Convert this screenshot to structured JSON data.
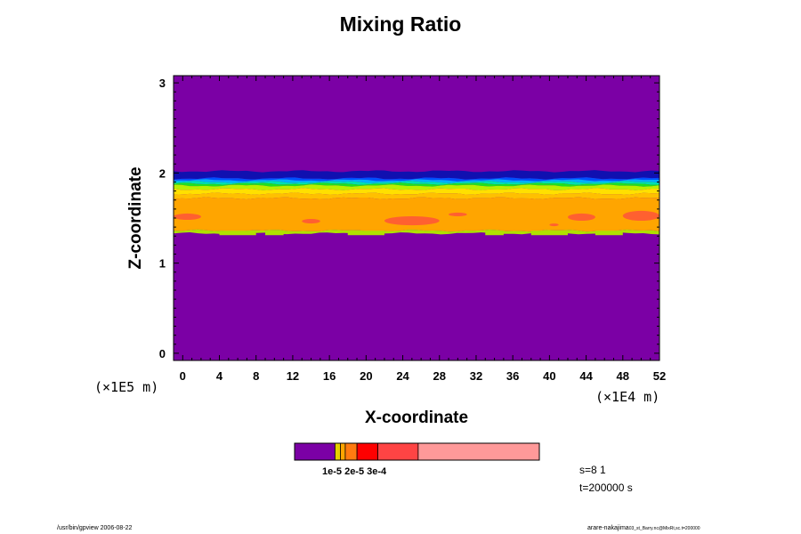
{
  "chart_data": {
    "type": "heatmap",
    "title": "Mixing Ratio",
    "xlabel": "X-coordinate",
    "ylabel": "Z-coordinate",
    "x_unit": "(×1E4 m)",
    "y_unit": "(×1E5 m)",
    "xlim": [
      -1,
      52
    ],
    "ylim": [
      -0.08,
      3.08
    ],
    "x_ticks": [
      0,
      4,
      8,
      12,
      16,
      20,
      24,
      28,
      32,
      36,
      40,
      44,
      48,
      52
    ],
    "y_ticks": [
      0,
      1,
      2,
      3
    ],
    "background_value_color": "#7b00a5",
    "bands": [
      {
        "z_bottom": 1.94,
        "z_top": 2.02,
        "color": "#1010b0"
      },
      {
        "z_bottom": 1.92,
        "z_top": 1.94,
        "color": "#0050ff"
      },
      {
        "z_bottom": 1.9,
        "z_top": 1.92,
        "color": "#00b0ff"
      },
      {
        "z_bottom": 1.88,
        "z_top": 1.9,
        "color": "#00e0b0"
      },
      {
        "z_bottom": 1.86,
        "z_top": 1.88,
        "color": "#20e020"
      },
      {
        "z_bottom": 1.82,
        "z_top": 1.86,
        "color": "#b8f000"
      },
      {
        "z_bottom": 1.77,
        "z_top": 1.82,
        "color": "#ffe000"
      },
      {
        "z_bottom": 1.72,
        "z_top": 1.77,
        "color": "#ffc000"
      },
      {
        "z_bottom": 1.36,
        "z_top": 1.72,
        "color": "#ffa500"
      },
      {
        "z_bottom": 1.33,
        "z_top": 1.36,
        "color": "#b0e000"
      }
    ],
    "high_value_patches_color": "#ff6030",
    "colorbar": {
      "colors": [
        "#7b00a5",
        "#e8d000",
        "#ffa500",
        "#ff7a10",
        "#ff0000",
        "#ff4444",
        "#ff9999"
      ],
      "weights": [
        0.165,
        0.022,
        0.02,
        0.048,
        0.085,
        0.165,
        0.495
      ],
      "labels_text": "1e-5 2e-5 3e-4"
    }
  },
  "info": {
    "s_line": "s=8 1",
    "t_line": "t=200000 s"
  },
  "footer": {
    "left": "/usr/bin/gpview 2006-08-22",
    "right_main": "arare-nakajima",
    "right_small": "03_st_Barry.nc@MixRt,sc.t=200000"
  }
}
